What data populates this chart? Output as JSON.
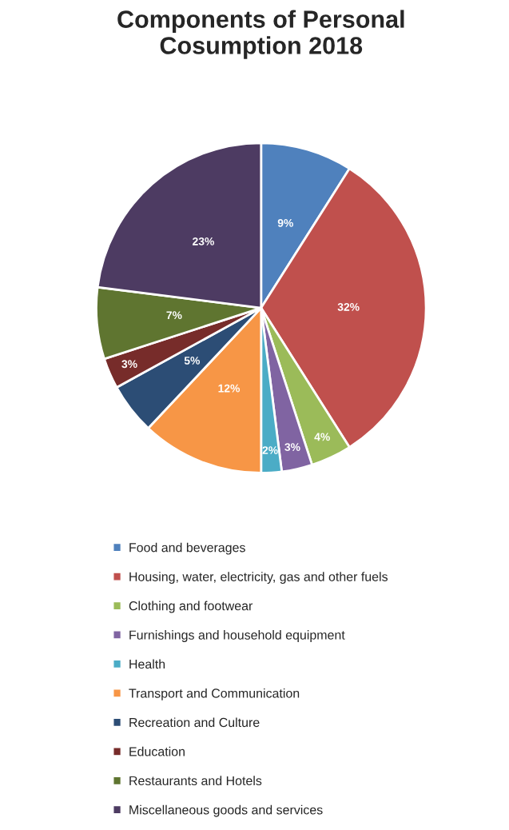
{
  "chart_data": {
    "type": "pie",
    "title": "Components of Personal\nCosumption 2018",
    "categories": [
      "Food and beverages",
      "Housing, water, electricity, gas and other fuels",
      "Clothing and footwear",
      "Furnishings and household equipment",
      "Health",
      "Transport and Communication",
      "Recreation and Culture",
      "Education",
      "Restaurants and Hotels",
      "Miscellaneous goods and services"
    ],
    "values": [
      9,
      32,
      4,
      3,
      2,
      12,
      5,
      3,
      7,
      23
    ],
    "colors": [
      "#4f81bd",
      "#c0504d",
      "#9bbb59",
      "#8064a2",
      "#4bacc6",
      "#f79646",
      "#2c4d75",
      "#772c2a",
      "#5f7530",
      "#4d3b62"
    ],
    "value_labels": [
      "9%",
      "32%",
      "4%",
      "3%",
      "2%",
      "12%",
      "5%",
      "3%",
      "7%",
      "23%"
    ],
    "legend": "bottom"
  }
}
